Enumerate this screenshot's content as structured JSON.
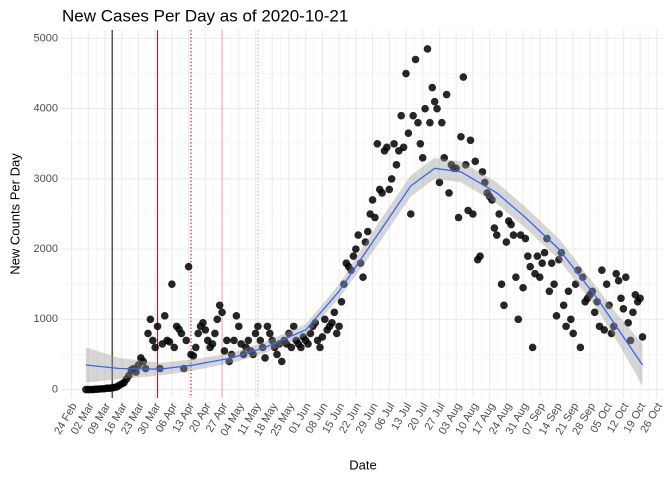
{
  "chart_data": {
    "type": "scatter",
    "title": "New Cases Per Day as of 2020-10-21",
    "x_label": "Date",
    "y_label": "New Counts Per Day",
    "grid": true,
    "color": "#000000",
    "xlim": [
      "2020-02-20",
      "2020-10-29"
    ],
    "ylim": [
      -120,
      5120
    ],
    "yticks": [
      0,
      1000,
      2000,
      3000,
      4000,
      5000
    ],
    "xticks": [
      {
        "value": "2020-02-24",
        "label": "24 Feb"
      },
      {
        "value": "2020-03-02",
        "label": "02 Mar"
      },
      {
        "value": "2020-03-09",
        "label": "09 Mar"
      },
      {
        "value": "2020-03-16",
        "label": "16 Mar"
      },
      {
        "value": "2020-03-23",
        "label": "23 Mar"
      },
      {
        "value": "2020-03-30",
        "label": "30 Mar"
      },
      {
        "value": "2020-04-06",
        "label": "06 Apr"
      },
      {
        "value": "2020-04-13",
        "label": "13 Apr"
      },
      {
        "value": "2020-04-20",
        "label": "20 Apr"
      },
      {
        "value": "2020-04-27",
        "label": "27 Apr"
      },
      {
        "value": "2020-05-04",
        "label": "04 May"
      },
      {
        "value": "2020-05-11",
        "label": "11 May"
      },
      {
        "value": "2020-05-18",
        "label": "18 May"
      },
      {
        "value": "2020-05-25",
        "label": "25 May"
      },
      {
        "value": "2020-06-01",
        "label": "01 Jun"
      },
      {
        "value": "2020-06-08",
        "label": "08 Jun"
      },
      {
        "value": "2020-06-15",
        "label": "15 Jun"
      },
      {
        "value": "2020-06-22",
        "label": "22 Jun"
      },
      {
        "value": "2020-06-29",
        "label": "29 Jun"
      },
      {
        "value": "2020-07-06",
        "label": "06 Jul"
      },
      {
        "value": "2020-07-13",
        "label": "13 Jul"
      },
      {
        "value": "2020-07-20",
        "label": "20 Jul"
      },
      {
        "value": "2020-07-27",
        "label": "27 Jul"
      },
      {
        "value": "2020-08-03",
        "label": "03 Aug"
      },
      {
        "value": "2020-08-10",
        "label": "10 Aug"
      },
      {
        "value": "2020-08-17",
        "label": "17 Aug"
      },
      {
        "value": "2020-08-24",
        "label": "24 Aug"
      },
      {
        "value": "2020-08-31",
        "label": "31 Aug"
      },
      {
        "value": "2020-09-07",
        "label": "07 Sep"
      },
      {
        "value": "2020-09-14",
        "label": "14 Sep"
      },
      {
        "value": "2020-09-21",
        "label": "21 Sep"
      },
      {
        "value": "2020-09-28",
        "label": "28 Sep"
      },
      {
        "value": "2020-10-05",
        "label": "05 Oct"
      },
      {
        "value": "2020-10-12",
        "label": "12 Oct"
      },
      {
        "value": "2020-10-19",
        "label": "19 Oct"
      },
      {
        "value": "2020-10-26",
        "label": "26 Oct"
      }
    ],
    "vlines": [
      {
        "x": "2020-03-12",
        "color": "#000000",
        "linetype": "solid"
      },
      {
        "x": "2020-03-31",
        "color": "#cc0000",
        "linetype": "solid"
      },
      {
        "x": "2020-04-14",
        "color": "#cc0000",
        "linetype": "dotted"
      },
      {
        "x": "2020-04-27",
        "color": "#f2a0a0",
        "linetype": "solid"
      },
      {
        "x": "2020-05-12",
        "color": "#f2a0a0",
        "linetype": "dotted"
      }
    ],
    "x": [
      "2020-03-01",
      "2020-03-02",
      "2020-03-03",
      "2020-03-04",
      "2020-03-05",
      "2020-03-06",
      "2020-03-07",
      "2020-03-08",
      "2020-03-09",
      "2020-03-10",
      "2020-03-11",
      "2020-03-12",
      "2020-03-13",
      "2020-03-14",
      "2020-03-15",
      "2020-03-16",
      "2020-03-17",
      "2020-03-18",
      "2020-03-19",
      "2020-03-20",
      "2020-03-21",
      "2020-03-22",
      "2020-03-23",
      "2020-03-24",
      "2020-03-25",
      "2020-03-26",
      "2020-03-27",
      "2020-03-28",
      "2020-03-29",
      "2020-03-30",
      "2020-03-31",
      "2020-04-01",
      "2020-04-02",
      "2020-04-03",
      "2020-04-04",
      "2020-04-05",
      "2020-04-06",
      "2020-04-07",
      "2020-04-08",
      "2020-04-09",
      "2020-04-10",
      "2020-04-11",
      "2020-04-12",
      "2020-04-13",
      "2020-04-14",
      "2020-04-15",
      "2020-04-16",
      "2020-04-17",
      "2020-04-18",
      "2020-04-19",
      "2020-04-20",
      "2020-04-21",
      "2020-04-22",
      "2020-04-23",
      "2020-04-24",
      "2020-04-25",
      "2020-04-26",
      "2020-04-27",
      "2020-04-28",
      "2020-04-29",
      "2020-04-30",
      "2020-05-01",
      "2020-05-02",
      "2020-05-03",
      "2020-05-04",
      "2020-05-05",
      "2020-05-06",
      "2020-05-07",
      "2020-05-08",
      "2020-05-09",
      "2020-05-10",
      "2020-05-11",
      "2020-05-12",
      "2020-05-13",
      "2020-05-14",
      "2020-05-15",
      "2020-05-16",
      "2020-05-17",
      "2020-05-18",
      "2020-05-19",
      "2020-05-20",
      "2020-05-21",
      "2020-05-22",
      "2020-05-23",
      "2020-05-24",
      "2020-05-25",
      "2020-05-26",
      "2020-05-27",
      "2020-05-28",
      "2020-05-29",
      "2020-05-30",
      "2020-05-31",
      "2020-06-01",
      "2020-06-02",
      "2020-06-03",
      "2020-06-04",
      "2020-06-05",
      "2020-06-06",
      "2020-06-07",
      "2020-06-08",
      "2020-06-09",
      "2020-06-10",
      "2020-06-11",
      "2020-06-12",
      "2020-06-13",
      "2020-06-14",
      "2020-06-15",
      "2020-06-16",
      "2020-06-17",
      "2020-06-18",
      "2020-06-19",
      "2020-06-20",
      "2020-06-21",
      "2020-06-22",
      "2020-06-23",
      "2020-06-24",
      "2020-06-25",
      "2020-06-26",
      "2020-06-27",
      "2020-06-28",
      "2020-06-29",
      "2020-06-30",
      "2020-07-01",
      "2020-07-02",
      "2020-07-03",
      "2020-07-04",
      "2020-07-05",
      "2020-07-06",
      "2020-07-07",
      "2020-07-08",
      "2020-07-09",
      "2020-07-10",
      "2020-07-11",
      "2020-07-12",
      "2020-07-13",
      "2020-07-14",
      "2020-07-15",
      "2020-07-16",
      "2020-07-17",
      "2020-07-18",
      "2020-07-19",
      "2020-07-20",
      "2020-07-21",
      "2020-07-22",
      "2020-07-23",
      "2020-07-24",
      "2020-07-25",
      "2020-07-26",
      "2020-07-27",
      "2020-07-28",
      "2020-07-29",
      "2020-07-30",
      "2020-07-31",
      "2020-08-01",
      "2020-08-02",
      "2020-08-03",
      "2020-08-04",
      "2020-08-05",
      "2020-08-06",
      "2020-08-07",
      "2020-08-08",
      "2020-08-09",
      "2020-08-10",
      "2020-08-11",
      "2020-08-12",
      "2020-08-13",
      "2020-08-14",
      "2020-08-15",
      "2020-08-16",
      "2020-08-17",
      "2020-08-18",
      "2020-08-19",
      "2020-08-20",
      "2020-08-21",
      "2020-08-22",
      "2020-08-23",
      "2020-08-24",
      "2020-08-25",
      "2020-08-26",
      "2020-08-27",
      "2020-08-28",
      "2020-08-29",
      "2020-08-30",
      "2020-08-31",
      "2020-09-01",
      "2020-09-02",
      "2020-09-03",
      "2020-09-04",
      "2020-09-05",
      "2020-09-06",
      "2020-09-07",
      "2020-09-08",
      "2020-09-09",
      "2020-09-10",
      "2020-09-11",
      "2020-09-12",
      "2020-09-13",
      "2020-09-14",
      "2020-09-15",
      "2020-09-16",
      "2020-09-17",
      "2020-09-18",
      "2020-09-19",
      "2020-09-20",
      "2020-09-21",
      "2020-09-22",
      "2020-09-23",
      "2020-09-24",
      "2020-09-25",
      "2020-09-26",
      "2020-09-27",
      "2020-09-28",
      "2020-09-29",
      "2020-09-30",
      "2020-10-01",
      "2020-10-02",
      "2020-10-03",
      "2020-10-04",
      "2020-10-05",
      "2020-10-06",
      "2020-10-07",
      "2020-10-08",
      "2020-10-09",
      "2020-10-10",
      "2020-10-11",
      "2020-10-12",
      "2020-10-13",
      "2020-10-14",
      "2020-10-15",
      "2020-10-16",
      "2020-10-17",
      "2020-10-18",
      "2020-10-19",
      "2020-10-20"
    ],
    "values": [
      0,
      0,
      0,
      0,
      5,
      5,
      10,
      10,
      15,
      20,
      20,
      25,
      30,
      40,
      60,
      80,
      100,
      150,
      200,
      280,
      300,
      250,
      350,
      450,
      400,
      300,
      800,
      1000,
      700,
      600,
      900,
      300,
      650,
      1050,
      700,
      680,
      1500,
      600,
      900,
      860,
      800,
      300,
      700,
      1750,
      500,
      480,
      600,
      800,
      900,
      950,
      850,
      700,
      600,
      650,
      800,
      1000,
      1200,
      1100,
      550,
      700,
      400,
      500,
      700,
      1050,
      900,
      650,
      500,
      600,
      700,
      550,
      500,
      800,
      900,
      700,
      600,
      450,
      900,
      800,
      700,
      600,
      500,
      650,
      400,
      700,
      650,
      800,
      600,
      900,
      700,
      650,
      600,
      750,
      700,
      650,
      800,
      900,
      950,
      700,
      600,
      750,
      1000,
      850,
      900,
      950,
      1100,
      800,
      900,
      1250,
      1500,
      1800,
      1750,
      1700,
      1900,
      2000,
      2200,
      1800,
      1600,
      2100,
      2250,
      2500,
      2700,
      2450,
      3500,
      2850,
      2800,
      3400,
      3450,
      2850,
      3000,
      3500,
      3200,
      3400,
      3900,
      3450,
      4500,
      3650,
      2500,
      3900,
      4700,
      3800,
      3500,
      3300,
      4000,
      4850,
      3800,
      4300,
      4100,
      4000,
      2950,
      3800,
      3300,
      4200,
      2800,
      3200,
      3150,
      3150,
      2450,
      3600,
      4450,
      3200,
      2550,
      3550,
      2500,
      3250,
      1850,
      1900,
      3100,
      2950,
      2800,
      2750,
      2700,
      2300,
      2200,
      2500,
      1500,
      1200,
      2100,
      2400,
      2350,
      2200,
      1600,
      1000,
      2200,
      1450,
      2150,
      1900,
      1750,
      600,
      1650,
      1900,
      1600,
      1800,
      1950,
      2150,
      1400,
      1800,
      1500,
      1050,
      1850,
      1950,
      1200,
      900,
      1400,
      1000,
      800,
      1500,
      1700,
      600,
      1600,
      1250,
      1300,
      1350,
      1400,
      1100,
      1250,
      900,
      1700,
      850,
      1500,
      1200,
      800,
      900,
      1650,
      1550,
      1300,
      1150,
      1600,
      950,
      700,
      1100,
      1350,
      1250,
      1300,
      750
    ],
    "trend": {
      "color": "#3366ff",
      "band_color": "#999999",
      "x": [
        "2020-03-01",
        "2020-03-15",
        "2020-04-01",
        "2020-04-15",
        "2020-05-01",
        "2020-05-15",
        "2020-06-01",
        "2020-06-15",
        "2020-07-01",
        "2020-07-15",
        "2020-07-25",
        "2020-08-05",
        "2020-08-20",
        "2020-09-01",
        "2020-09-15",
        "2020-10-01",
        "2020-10-10",
        "2020-10-20"
      ],
      "values": [
        350,
        300,
        290,
        350,
        450,
        600,
        850,
        1400,
        2200,
        2900,
        3150,
        3100,
        2800,
        2450,
        2000,
        1300,
        850,
        350
      ],
      "lower": [
        100,
        150,
        200,
        270,
        380,
        520,
        770,
        1300,
        2050,
        2750,
        3000,
        2950,
        2650,
        2300,
        1850,
        1150,
        650,
        50
      ],
      "upper": [
        600,
        450,
        380,
        430,
        520,
        680,
        930,
        1500,
        2350,
        3050,
        3300,
        3250,
        2950,
        2600,
        2150,
        1450,
        1050,
        650
      ]
    }
  }
}
